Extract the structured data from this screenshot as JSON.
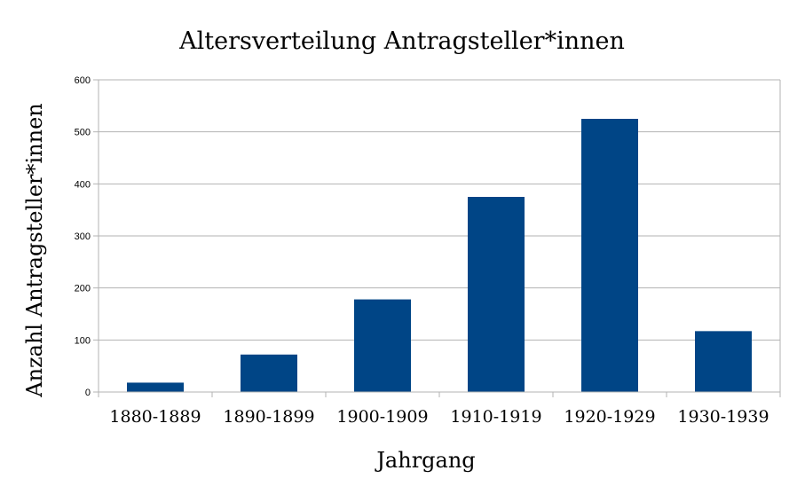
{
  "chart_data": {
    "type": "bar",
    "title": "Altersverteilung Antragsteller*innen",
    "xlabel": "Jahrgang",
    "ylabel": "Anzahl Antragsteller*innen",
    "categories": [
      "1880-1889",
      "1890-1899",
      "1900-1909",
      "1910-1919",
      "1920-1929",
      "1930-1939"
    ],
    "values": [
      18,
      72,
      178,
      375,
      525,
      117
    ],
    "ylim": [
      0,
      600
    ],
    "yticks": [
      "0",
      "100",
      "200",
      "300",
      "400",
      "500",
      "600"
    ],
    "grid": true,
    "legend": "none",
    "bar_color": "#004586"
  }
}
